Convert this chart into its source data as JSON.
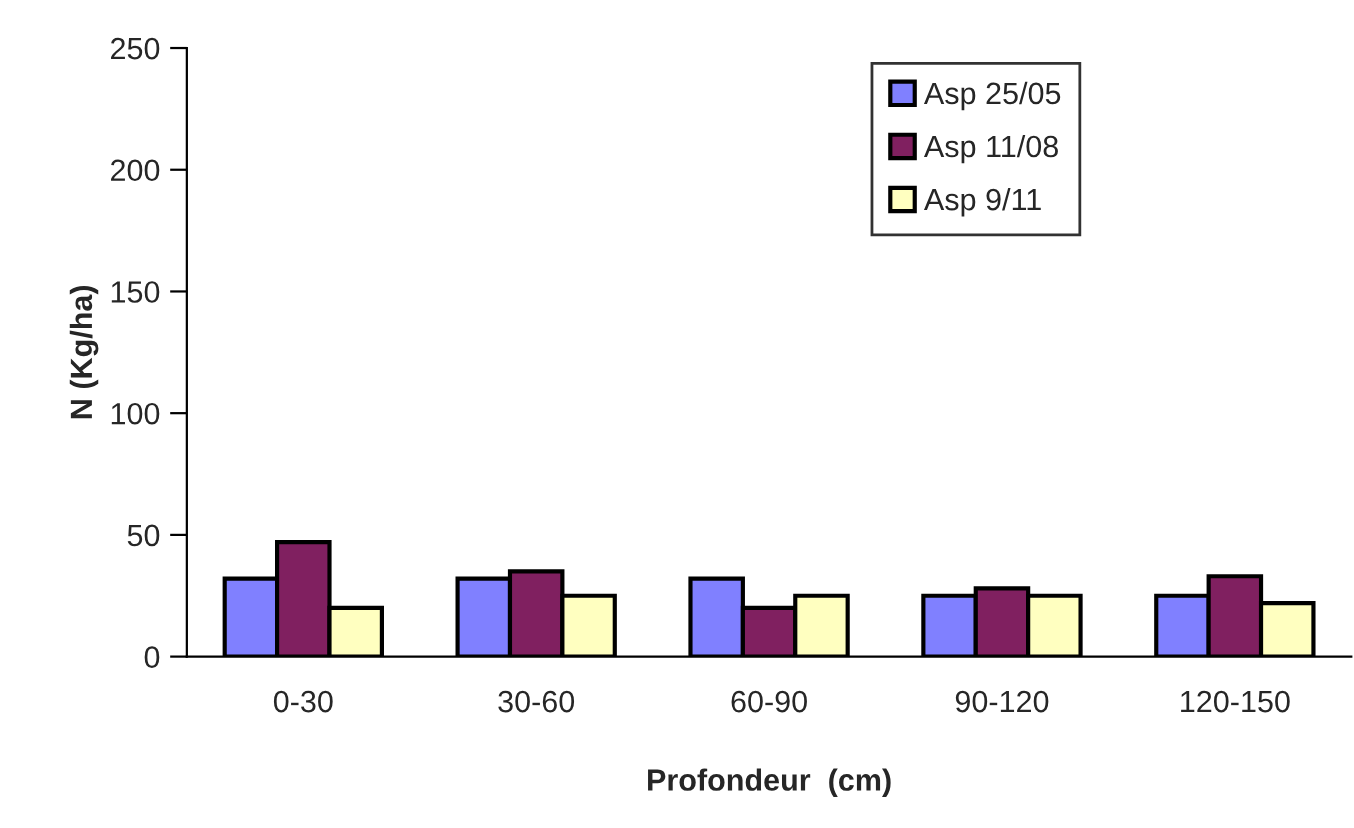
{
  "chart_data": {
    "type": "bar",
    "xlabel": "Profondeur  (cm)",
    "ylabel": "N (Kg/ha)",
    "categories": [
      "0-30",
      "30-60",
      "60-90",
      "90-120",
      "120-150"
    ],
    "series": [
      {
        "name": "Asp 25/05",
        "color": "#8080ff",
        "values": [
          32,
          32,
          32,
          25,
          25
        ]
      },
      {
        "name": "Asp 11/08",
        "color": "#802060",
        "values": [
          47,
          35,
          20,
          28,
          33
        ]
      },
      {
        "name": "Asp 9/11",
        "color": "#ffffc0",
        "values": [
          20,
          25,
          25,
          25,
          22
        ]
      }
    ],
    "ylim": [
      0,
      250
    ],
    "yticks": [
      0,
      50,
      100,
      150,
      200,
      250
    ],
    "grid": false,
    "legend": "top right"
  }
}
